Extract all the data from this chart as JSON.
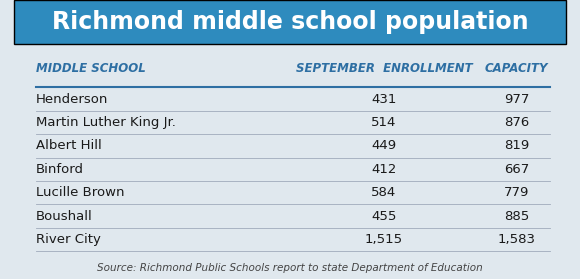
{
  "title": "Richmond middle school population",
  "title_bg_color": "#2E8BBE",
  "title_text_color": "#FFFFFF",
  "header": [
    "Middle School",
    "September  Enrollment",
    "Capacity"
  ],
  "header_color": "#2E6FA3",
  "schools": [
    "Henderson",
    "Martin Luther King Jr.",
    "Albert Hill",
    "Binford",
    "Lucille Brown",
    "Boushall",
    "River City"
  ],
  "enrollment": [
    "431",
    "514",
    "449",
    "412",
    "584",
    "455",
    "1,515"
  ],
  "capacity": [
    "977",
    "876",
    "819",
    "667",
    "779",
    "885",
    "1,583"
  ],
  "source": "Source: Richmond Public Schools report to state Department of Education",
  "bg_color": "#E0E8EE",
  "row_line_color": "#A0AABB",
  "header_color_line": "#2E6FA3",
  "col_school": 0.04,
  "col_enroll": 0.67,
  "col_cap": 0.91,
  "title_fontsize": 17,
  "header_fontsize": 8.5,
  "data_fontsize": 9.5,
  "source_fontsize": 7.5
}
